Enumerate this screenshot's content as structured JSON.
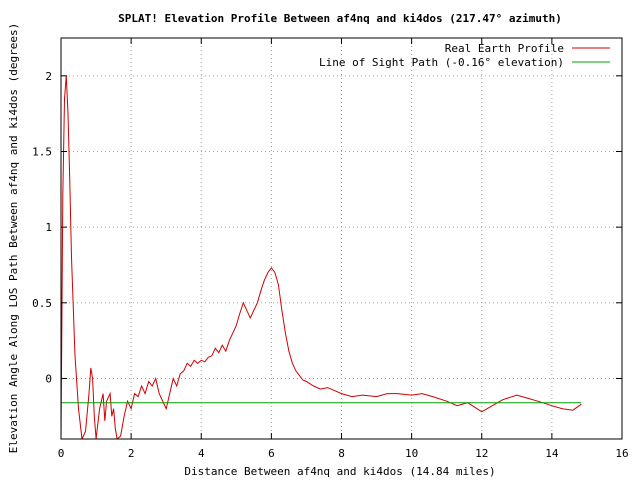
{
  "chart_data": {
    "type": "line",
    "title": "SPLAT! Elevation Profile Between af4nq and ki4dos (217.47° azimuth)",
    "xlabel": "Distance Between af4nq and ki4dos (14.84 miles)",
    "ylabel": "Elevation Angle Along LOS Path Between af4nq and ki4dos (degrees)",
    "xlim": [
      0,
      16
    ],
    "ylim": [
      -0.4,
      2.25
    ],
    "xticks": [
      0,
      2,
      4,
      6,
      8,
      10,
      12,
      14,
      16
    ],
    "xtick_labels": [
      "0",
      "2",
      "4",
      "6",
      "8",
      "10",
      "12",
      "14",
      "16"
    ],
    "yticks": [
      0,
      0.5,
      1,
      1.5,
      2
    ],
    "ytick_labels": [
      "0",
      "0.5",
      "1",
      "1.5",
      "2"
    ],
    "grid": true,
    "legend_position": "top-right",
    "series": [
      {
        "name": "Real Earth Profile",
        "color": "#d00000",
        "x": [
          0.0,
          0.05,
          0.1,
          0.15,
          0.2,
          0.25,
          0.3,
          0.4,
          0.5,
          0.6,
          0.7,
          0.8,
          0.85,
          0.9,
          0.95,
          1.0,
          1.05,
          1.1,
          1.2,
          1.25,
          1.3,
          1.4,
          1.45,
          1.5,
          1.55,
          1.6,
          1.7,
          1.8,
          1.9,
          2.0,
          2.1,
          2.2,
          2.3,
          2.4,
          2.5,
          2.6,
          2.7,
          2.8,
          2.9,
          3.0,
          3.1,
          3.2,
          3.3,
          3.4,
          3.5,
          3.6,
          3.7,
          3.8,
          3.9,
          4.0,
          4.1,
          4.2,
          4.3,
          4.4,
          4.5,
          4.6,
          4.7,
          4.8,
          4.9,
          5.0,
          5.1,
          5.2,
          5.3,
          5.4,
          5.5,
          5.6,
          5.7,
          5.8,
          5.9,
          6.0,
          6.1,
          6.2,
          6.3,
          6.4,
          6.5,
          6.6,
          6.7,
          6.8,
          6.9,
          7.0,
          7.2,
          7.4,
          7.6,
          7.8,
          8.0,
          8.3,
          8.6,
          9.0,
          9.3,
          9.6,
          10.0,
          10.3,
          10.6,
          11.0,
          11.3,
          11.6,
          12.0,
          12.3,
          12.6,
          13.0,
          13.3,
          13.6,
          14.0,
          14.3,
          14.6,
          14.84
        ],
        "values": [
          -0.4,
          1.2,
          1.85,
          2.0,
          1.75,
          1.3,
          0.8,
          0.15,
          -0.2,
          -0.4,
          -0.35,
          -0.1,
          0.07,
          0.0,
          -0.25,
          -0.4,
          -0.3,
          -0.2,
          -0.1,
          -0.28,
          -0.15,
          -0.1,
          -0.25,
          -0.2,
          -0.33,
          -0.4,
          -0.38,
          -0.25,
          -0.15,
          -0.2,
          -0.1,
          -0.12,
          -0.05,
          -0.1,
          -0.02,
          -0.05,
          0.0,
          -0.1,
          -0.15,
          -0.2,
          -0.1,
          0.0,
          -0.05,
          0.03,
          0.05,
          0.1,
          0.08,
          0.12,
          0.1,
          0.12,
          0.11,
          0.14,
          0.15,
          0.2,
          0.17,
          0.22,
          0.18,
          0.25,
          0.3,
          0.35,
          0.43,
          0.5,
          0.45,
          0.4,
          0.45,
          0.5,
          0.58,
          0.65,
          0.7,
          0.73,
          0.7,
          0.62,
          0.45,
          0.3,
          0.18,
          0.1,
          0.05,
          0.02,
          -0.01,
          -0.02,
          -0.05,
          -0.07,
          -0.06,
          -0.08,
          -0.1,
          -0.12,
          -0.11,
          -0.12,
          -0.1,
          -0.1,
          -0.11,
          -0.1,
          -0.12,
          -0.15,
          -0.18,
          -0.16,
          -0.22,
          -0.18,
          -0.14,
          -0.11,
          -0.13,
          -0.15,
          -0.18,
          -0.2,
          -0.21,
          -0.17
        ]
      },
      {
        "name": "Line of Sight Path (-0.16° elevation)",
        "color": "#00a000",
        "x": [
          0,
          14.84
        ],
        "values": [
          -0.16,
          -0.16
        ]
      }
    ]
  }
}
